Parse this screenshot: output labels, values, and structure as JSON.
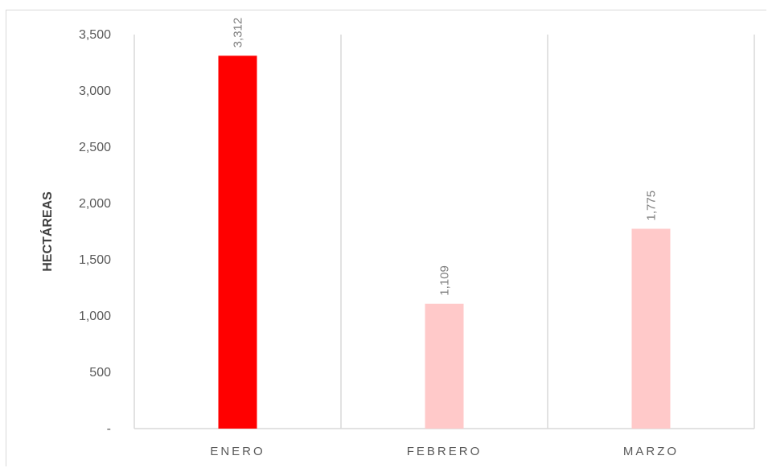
{
  "chart_data": {
    "type": "bar",
    "title": "",
    "xlabel": "",
    "ylabel": "HECTÁREAS",
    "categories": [
      "ENERO",
      "FEBRERO",
      "MARZO"
    ],
    "values": [
      3312,
      1109,
      1775
    ],
    "value_labels": [
      "3,312",
      "1,109",
      "1,775"
    ],
    "colors": [
      "#ff0000",
      "#ffc9c9",
      "#ffc9c9"
    ],
    "ylim": [
      0,
      3500
    ],
    "yticks": [
      0,
      500,
      1000,
      1500,
      2000,
      2500,
      3000,
      3500
    ],
    "ytick_labels": [
      "-",
      "500",
      "1,000",
      "1,500",
      "2,000",
      "2,500",
      "3,000",
      "3,500"
    ],
    "grid": "vertical category separators",
    "legend": "none"
  }
}
